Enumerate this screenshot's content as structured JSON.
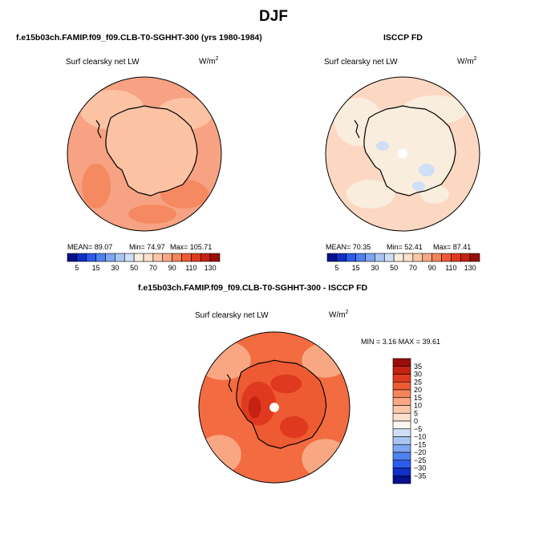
{
  "title": "DJF",
  "panels": [
    {
      "subtitle": "f.e15b03ch.FAMIP.f09_f09.CLB-T0-SGHHT-300 (yrs 1980-1984)",
      "field": "Surf clearsky net LW",
      "units": "W/m",
      "units_sup": "2",
      "mean": "MEAN= 89.07",
      "min": "Min= 74.97",
      "max": "Max= 105.71",
      "base_color": "#f7a282"
    },
    {
      "subtitle": "ISCCP FD",
      "field": "Surf clearsky net LW",
      "units": "W/m",
      "units_sup": "2",
      "mean": "MEAN= 70.35",
      "min": "Min= 52.41",
      "max": "Max= 87.41",
      "base_color": "#fcd8c2"
    },
    {
      "subtitle": "f.e15b03ch.FAMIP.f09_f09.CLB-T0-SGHHT-300 - ISCCP FD",
      "field": "Surf clearsky net LW",
      "units": "W/m",
      "units_sup": "2",
      "minmax": "MIN =  3.16 MAX =  39.61",
      "base_color": "#f36b40"
    }
  ],
  "colorbar_horizontal": {
    "labels": [
      "5",
      "15",
      "30",
      "50",
      "70",
      "90",
      "110",
      "130"
    ],
    "colors": [
      "#05108a",
      "#0f2fc8",
      "#2b5cec",
      "#4f82f0",
      "#7ea6f2",
      "#a9c6f3",
      "#cfdff6",
      "#f9eedd",
      "#fde0cc",
      "#fcc6a9",
      "#f9a783",
      "#f5845a",
      "#ee5b33",
      "#df3a1f",
      "#c52212",
      "#9a0d08"
    ]
  },
  "colorbar_vertical": {
    "labels": [
      "35",
      "30",
      "25",
      "20",
      "15",
      "10",
      "5",
      "0",
      "-5",
      "-10",
      "-15",
      "-20",
      "-25",
      "-30",
      "-35"
    ],
    "colors": [
      "#9a0d08",
      "#c52212",
      "#df3a1f",
      "#ee5b33",
      "#f5845a",
      "#f9a783",
      "#fcc6a9",
      "#fde0cc",
      "#f9f6f0",
      "#cfdff6",
      "#a9c6f3",
      "#7ea6f2",
      "#4f82f0",
      "#2b5cec",
      "#0f2fc8",
      "#05108a"
    ]
  }
}
